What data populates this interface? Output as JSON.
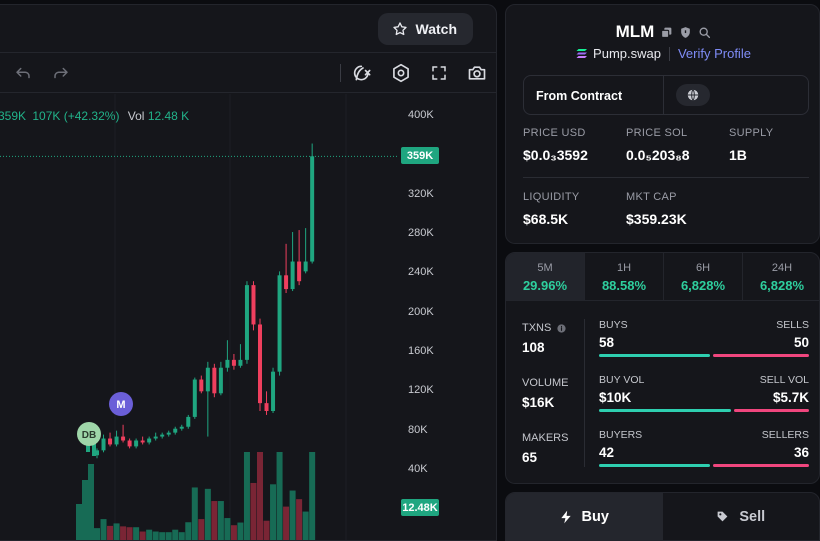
{
  "header": {
    "watch_label": "Watch",
    "watch_icon": "star-icon"
  },
  "toolbar": {
    "icons": [
      "undo-icon",
      "redo-icon",
      "indicator-icon",
      "settings-hex-icon",
      "fullscreen-icon",
      "camera-icon"
    ]
  },
  "chart": {
    "legend_price": "359K",
    "legend_change": "107K (+42.32%)",
    "legend_vol_label": "Vol",
    "legend_vol_value": "12.48 K",
    "price_tag": "359K",
    "volume_tag": "12.48K",
    "axis_ticks": [
      "400K",
      "360K",
      "320K",
      "280K",
      "240K",
      "200K",
      "160K",
      "120K",
      "80K",
      "40K"
    ],
    "markers": [
      {
        "label": "M",
        "color": "#6b5fd8"
      },
      {
        "label": "DB",
        "color": "#9fd6a9"
      }
    ],
    "colors": {
      "up": "#1fa680",
      "down": "#ef3f5e"
    }
  },
  "chart_data": {
    "type": "candlestick",
    "y_unit": "market cap",
    "ylim": [
      40000,
      400000
    ],
    "current": 359000,
    "candles": [
      {
        "o": 55000,
        "c": 60000,
        "h": 62000,
        "l": 52000
      },
      {
        "o": 60000,
        "c": 72000,
        "h": 76000,
        "l": 58000
      },
      {
        "o": 72000,
        "c": 66000,
        "h": 78000,
        "l": 64000
      },
      {
        "o": 66000,
        "c": 74000,
        "h": 80000,
        "l": 64000
      },
      {
        "o": 74000,
        "c": 70000,
        "h": 86000,
        "l": 68000
      },
      {
        "o": 70000,
        "c": 64000,
        "h": 72000,
        "l": 62000
      },
      {
        "o": 64000,
        "c": 70000,
        "h": 72000,
        "l": 62000
      },
      {
        "o": 70000,
        "c": 68000,
        "h": 74000,
        "l": 66000
      },
      {
        "o": 68000,
        "c": 72000,
        "h": 74000,
        "l": 66000
      },
      {
        "o": 72000,
        "c": 74000,
        "h": 78000,
        "l": 70000
      },
      {
        "o": 74000,
        "c": 76000,
        "h": 78000,
        "l": 72000
      },
      {
        "o": 76000,
        "c": 78000,
        "h": 80000,
        "l": 74000
      },
      {
        "o": 78000,
        "c": 82000,
        "h": 84000,
        "l": 76000
      },
      {
        "o": 82000,
        "c": 84000,
        "h": 86000,
        "l": 80000
      },
      {
        "o": 84000,
        "c": 94000,
        "h": 96000,
        "l": 82000
      },
      {
        "o": 94000,
        "c": 132000,
        "h": 134000,
        "l": 92000
      },
      {
        "o": 132000,
        "c": 120000,
        "h": 136000,
        "l": 118000
      },
      {
        "o": 120000,
        "c": 144000,
        "h": 150000,
        "l": 74000
      },
      {
        "o": 144000,
        "c": 118000,
        "h": 148000,
        "l": 114000
      },
      {
        "o": 118000,
        "c": 144000,
        "h": 150000,
        "l": 116000
      },
      {
        "o": 144000,
        "c": 152000,
        "h": 172000,
        "l": 140000
      },
      {
        "o": 152000,
        "c": 146000,
        "h": 158000,
        "l": 142000
      },
      {
        "o": 146000,
        "c": 152000,
        "h": 168000,
        "l": 144000
      },
      {
        "o": 152000,
        "c": 228000,
        "h": 232000,
        "l": 148000
      },
      {
        "o": 228000,
        "c": 188000,
        "h": 232000,
        "l": 182000
      },
      {
        "o": 188000,
        "c": 108000,
        "h": 194000,
        "l": 100000
      },
      {
        "o": 108000,
        "c": 100000,
        "h": 120000,
        "l": 96000
      },
      {
        "o": 100000,
        "c": 140000,
        "h": 144000,
        "l": 98000
      },
      {
        "o": 140000,
        "c": 238000,
        "h": 242000,
        "l": 136000
      },
      {
        "o": 238000,
        "c": 224000,
        "h": 270000,
        "l": 220000
      },
      {
        "o": 224000,
        "c": 252000,
        "h": 282000,
        "l": 222000
      },
      {
        "o": 252000,
        "c": 232000,
        "h": 284000,
        "l": 228000
      },
      {
        "o": 242000,
        "c": 252000,
        "h": 286000,
        "l": 240000
      },
      {
        "o": 252000,
        "c": 359000,
        "h": 372000,
        "l": 250000
      }
    ],
    "volume_current": 12480
  },
  "token": {
    "symbol": "MLM",
    "exchange": "Pump.swap",
    "verify_label": "Verify Profile",
    "from_contract_label": "From Contract",
    "stats": [
      {
        "label": "PRICE USD",
        "value": "$0.0₃3592"
      },
      {
        "label": "PRICE SOL",
        "value": "0.0₅203₈8"
      },
      {
        "label": "SUPPLY",
        "value": "1B"
      },
      {
        "label": "LIQUIDITY",
        "value": "$68.5K"
      },
      {
        "label": "MKT CAP",
        "value": "$359.23K"
      }
    ]
  },
  "timeframes": [
    {
      "label": "5M",
      "pct": "29.96%"
    },
    {
      "label": "1H",
      "pct": "88.58%"
    },
    {
      "label": "6H",
      "pct": "6,828%"
    },
    {
      "label": "24H",
      "pct": "6,828%"
    }
  ],
  "metrics": {
    "txns": {
      "label": "TXNS",
      "value": "108"
    },
    "volume": {
      "label": "VOLUME",
      "value": "$16K"
    },
    "makers": {
      "label": "MAKERS",
      "value": "65"
    },
    "rows": [
      {
        "left_label": "BUYS",
        "right_label": "SELLS",
        "left_value": "58",
        "right_value": "50",
        "left_share": 0.537
      },
      {
        "left_label": "BUY VOL",
        "right_label": "SELL VOL",
        "left_value": "$10K",
        "right_value": "$5.7K",
        "left_share": 0.637
      },
      {
        "left_label": "BUYERS",
        "right_label": "SELLERS",
        "left_value": "42",
        "right_value": "36",
        "left_share": 0.538
      }
    ],
    "colors": {
      "buy": "#2ecfb0",
      "sell": "#f0467e"
    }
  },
  "trade": {
    "buy_label": "Buy",
    "sell_label": "Sell"
  }
}
